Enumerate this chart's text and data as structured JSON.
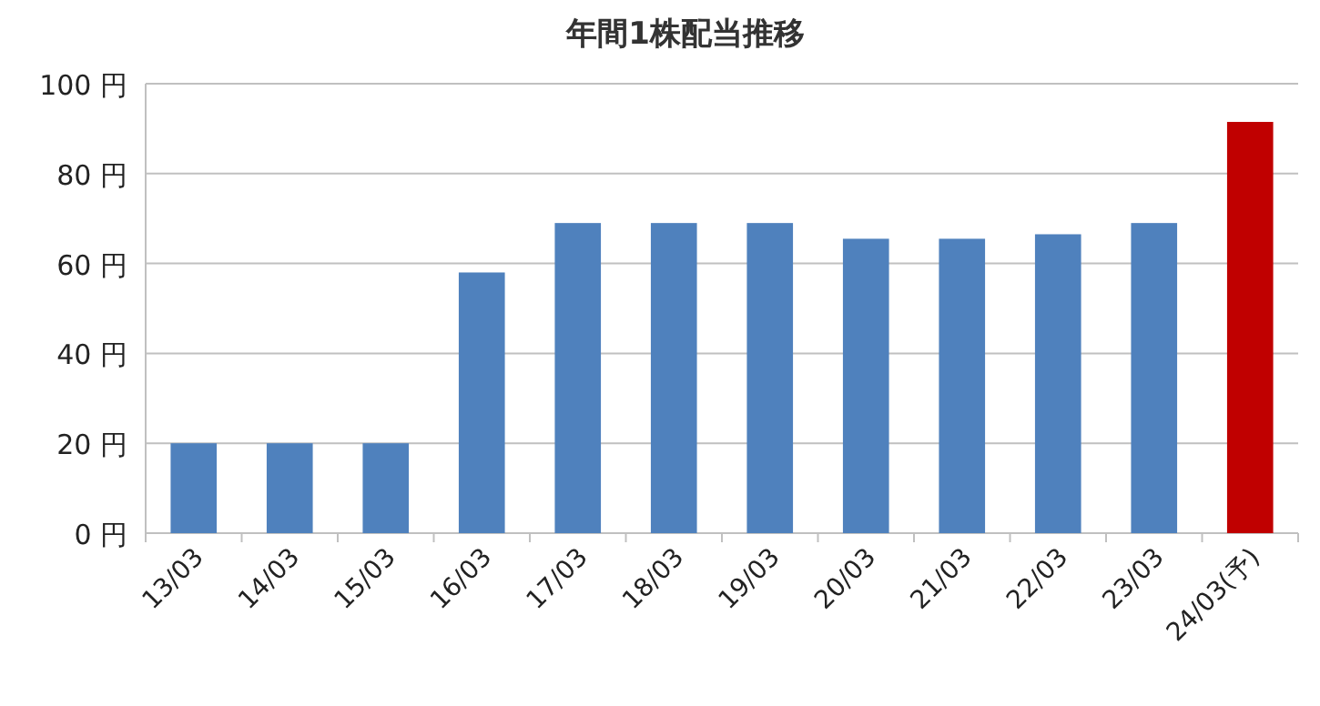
{
  "chart_data": {
    "type": "bar",
    "title": "年間1株配当推移",
    "categories": [
      "13/03",
      "14/03",
      "15/03",
      "16/03",
      "17/03",
      "18/03",
      "19/03",
      "20/03",
      "21/03",
      "22/03",
      "23/03",
      "24/03(予)"
    ],
    "values": [
      20,
      20,
      20,
      58,
      69,
      69,
      69,
      65.5,
      65.5,
      66.5,
      69,
      91.5
    ],
    "colors": [
      "#4f81bd",
      "#4f81bd",
      "#4f81bd",
      "#4f81bd",
      "#4f81bd",
      "#4f81bd",
      "#4f81bd",
      "#4f81bd",
      "#4f81bd",
      "#4f81bd",
      "#4f81bd",
      "#c00000"
    ],
    "ylim": [
      0,
      100
    ],
    "yticks": [
      {
        "value": 0,
        "label": "0 円"
      },
      {
        "value": 20,
        "label": "20 円"
      },
      {
        "value": 40,
        "label": "40 円"
      },
      {
        "value": 60,
        "label": "60 円"
      },
      {
        "value": 80,
        "label": "80 円"
      },
      {
        "value": 100,
        "label": "100 円"
      }
    ],
    "grid": "y"
  }
}
